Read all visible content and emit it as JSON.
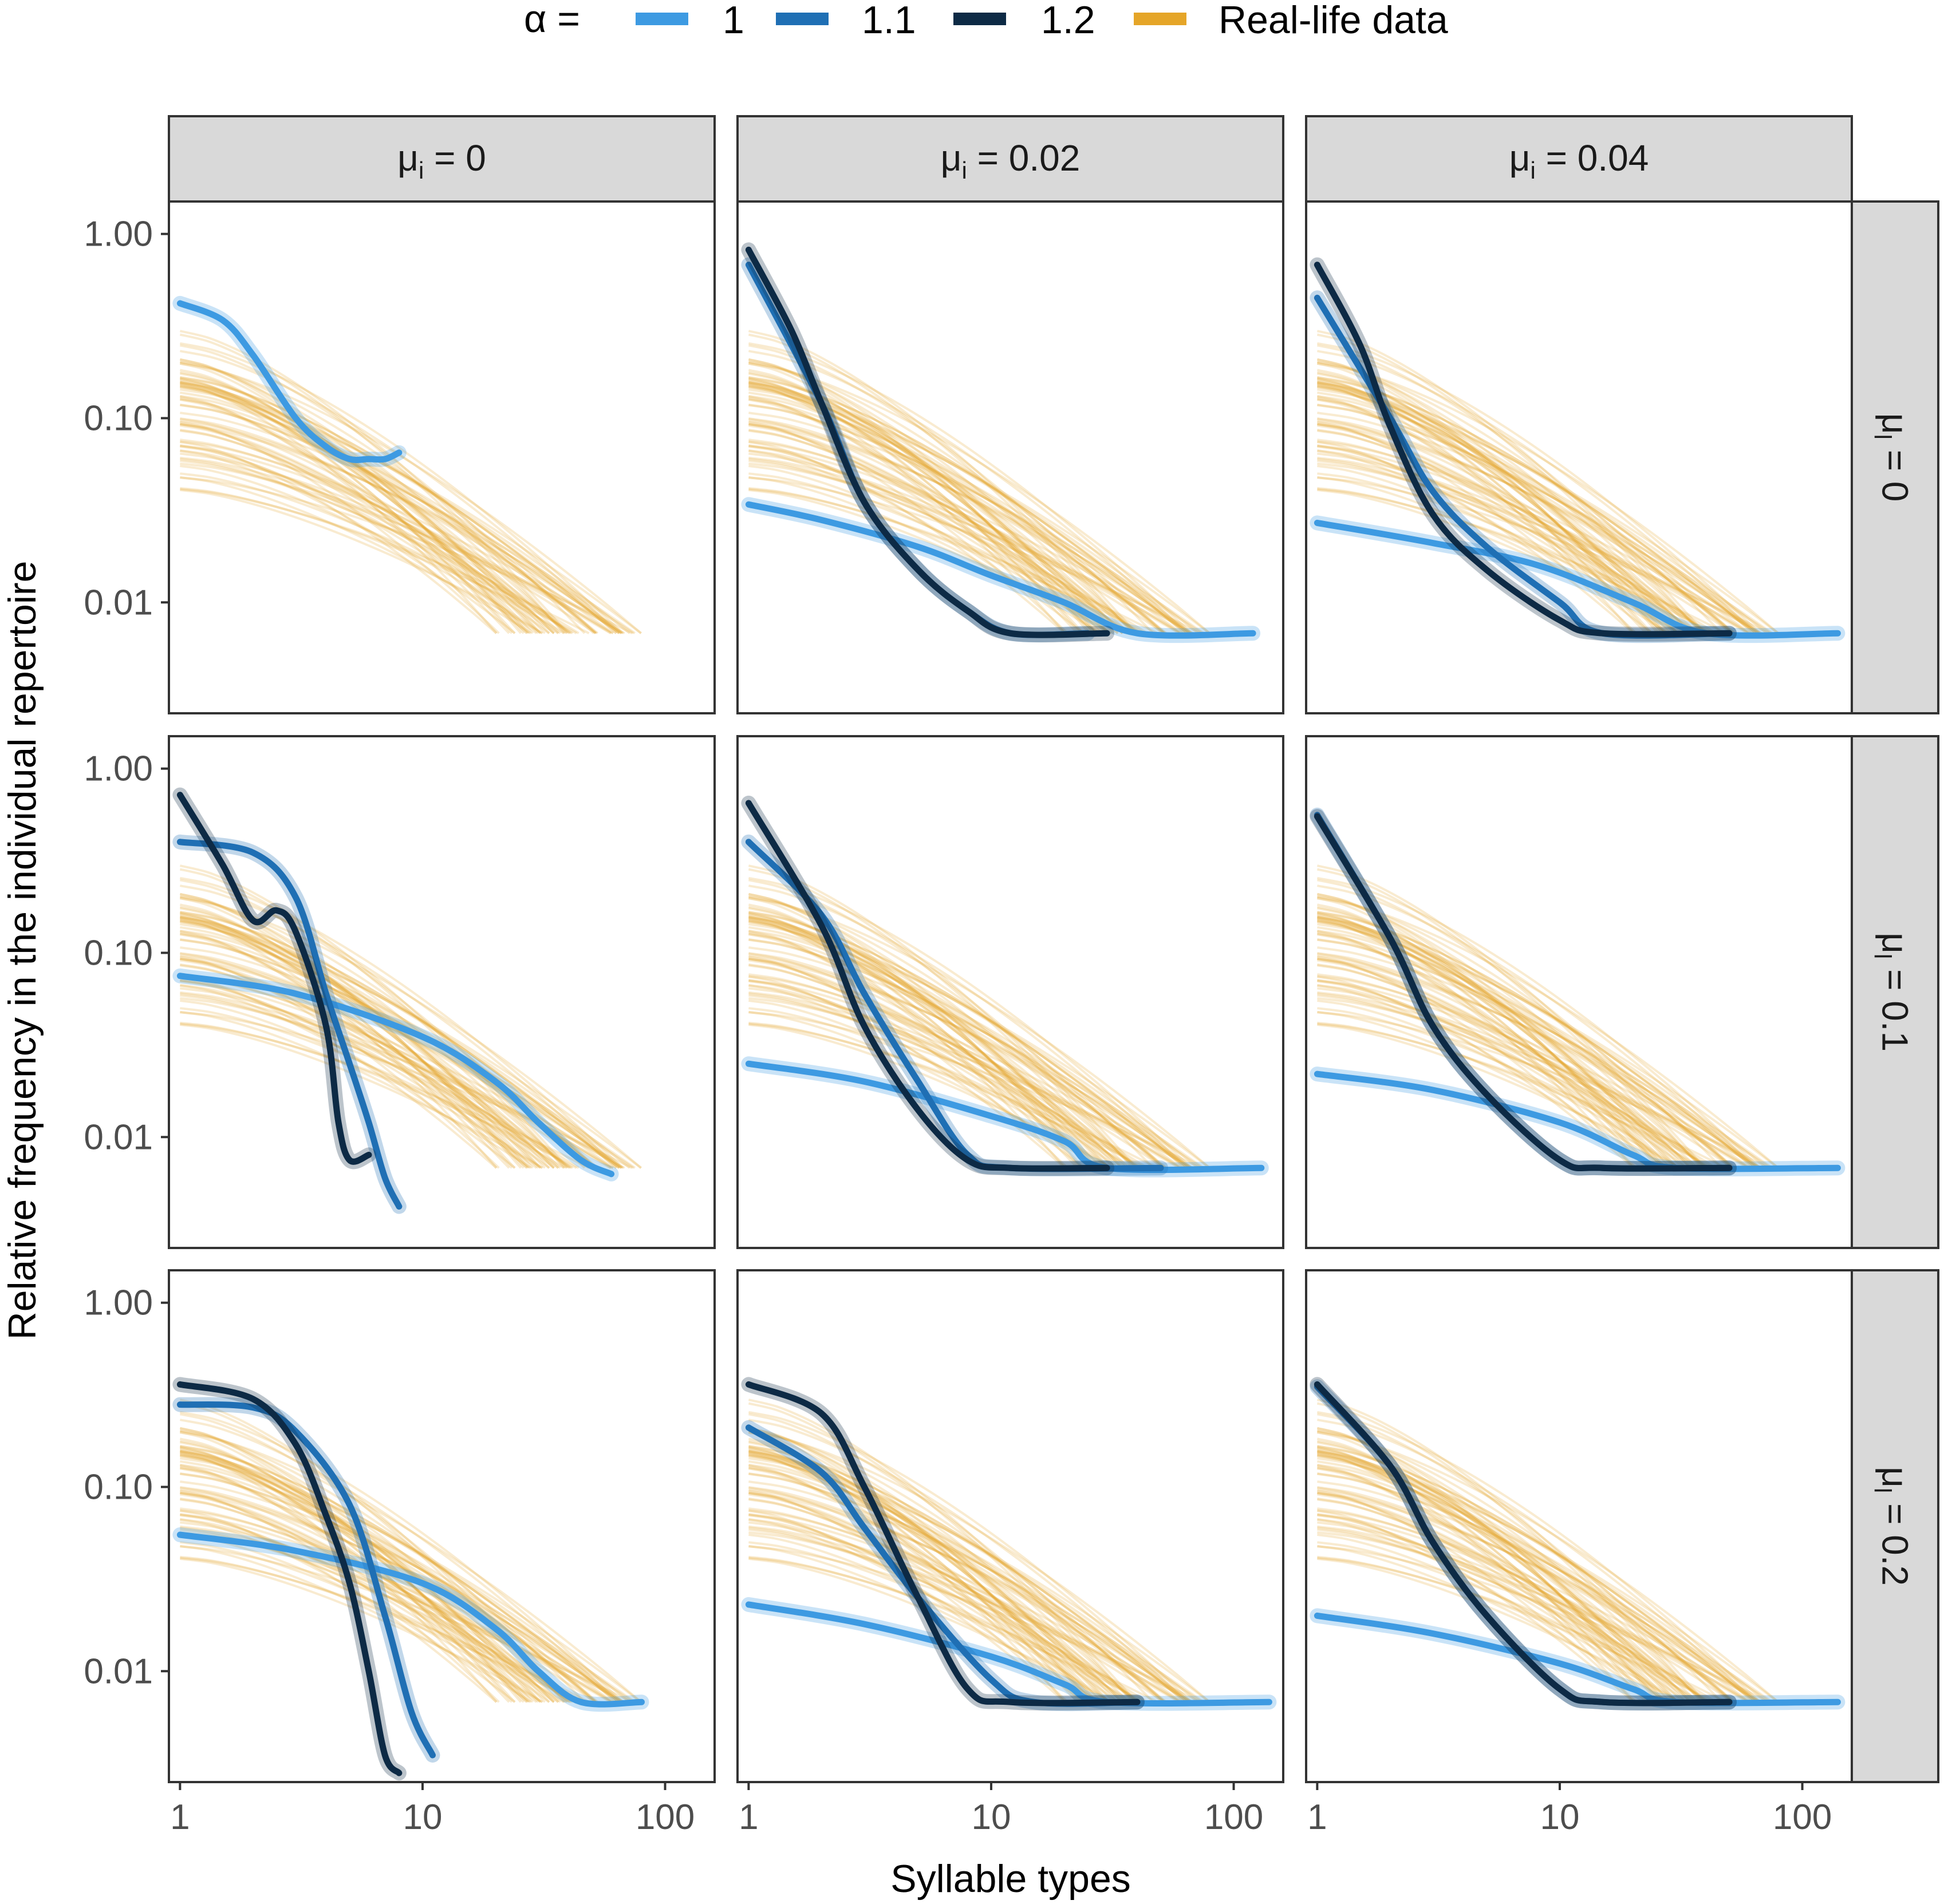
{
  "chart_data": {
    "type": "line",
    "title": "",
    "xlabel": "Syllable types",
    "ylabel": "Relative frequency in the individual repertoire",
    "x_scale": "log",
    "y_scale": "log",
    "xlim": [
      0.9,
      160
    ],
    "ylim": [
      0.0025,
      1.5
    ],
    "x_ticks": [
      1,
      10,
      100
    ],
    "x_tick_labels": [
      "1",
      "10",
      "100"
    ],
    "y_ticks": [
      1,
      0.1,
      0.01
    ],
    "y_tick_labels": [
      "1.00",
      "0.10",
      "0.01"
    ],
    "legend": {
      "title": "α =",
      "position": "top",
      "entries": [
        {
          "label": "1",
          "color": "#3d9ae2"
        },
        {
          "label": "1.1",
          "color": "#1f6fb4"
        },
        {
          "label": "1.2",
          "color": "#0d2a45"
        },
        {
          "label": "Real-life data",
          "color": "#e5a528"
        }
      ]
    },
    "col_facets": [
      {
        "symbol": "μ",
        "sub": "i",
        "value": "0"
      },
      {
        "symbol": "μ",
        "sub": "i",
        "value": "0.02"
      },
      {
        "symbol": "μ",
        "sub": "i",
        "value": "0.04"
      }
    ],
    "row_facets": [
      {
        "symbol": "μ",
        "sub": "l",
        "value": "0"
      },
      {
        "symbol": "μ",
        "sub": "l",
        "value": "0.1"
      },
      {
        "symbol": "μ",
        "sub": "l",
        "value": "0.2"
      }
    ],
    "real_life_data": {
      "description": "bundle of many semi-transparent empirical curves, identical in every panel",
      "start_range_at_x1": [
        0.04,
        0.3
      ],
      "x_end_range": [
        20,
        80
      ],
      "floor": 0.0068
    },
    "panels": [
      {
        "row": 0,
        "col": 0,
        "series": [
          {
            "alpha": "1",
            "points": [
              [
                1,
                0.42
              ],
              [
                1.5,
                0.34
              ],
              [
                2,
                0.22
              ],
              [
                3,
                0.1
              ],
              [
                4,
                0.07
              ],
              [
                5,
                0.06
              ],
              [
                6,
                0.06
              ],
              [
                7,
                0.06
              ],
              [
                8,
                0.065
              ]
            ]
          }
        ]
      },
      {
        "row": 0,
        "col": 1,
        "series": [
          {
            "alpha": "1",
            "points": [
              [
                1,
                0.034
              ],
              [
                2,
                0.028
              ],
              [
                5,
                0.02
              ],
              [
                10,
                0.014
              ],
              [
                20,
                0.01
              ],
              [
                40,
                0.0068
              ],
              [
                120,
                0.0068
              ]
            ]
          },
          {
            "alpha": "1.1",
            "points": [
              [
                1,
                0.68
              ],
              [
                2,
                0.12
              ],
              [
                3,
                0.035
              ],
              [
                5,
                0.015
              ],
              [
                8,
                0.009
              ],
              [
                12,
                0.0068
              ],
              [
                25,
                0.0068
              ]
            ]
          },
          {
            "alpha": "1.2",
            "points": [
              [
                1,
                0.82
              ],
              [
                1.5,
                0.3
              ],
              [
                2,
                0.12
              ],
              [
                3,
                0.035
              ],
              [
                5,
                0.015
              ],
              [
                8,
                0.009
              ],
              [
                12,
                0.0068
              ],
              [
                30,
                0.0068
              ]
            ]
          }
        ]
      },
      {
        "row": 0,
        "col": 2,
        "series": [
          {
            "alpha": "1",
            "points": [
              [
                1,
                0.027
              ],
              [
                3,
                0.021
              ],
              [
                8,
                0.016
              ],
              [
                20,
                0.01
              ],
              [
                40,
                0.0068
              ],
              [
                140,
                0.0068
              ]
            ]
          },
          {
            "alpha": "1.1",
            "points": [
              [
                1,
                0.45
              ],
              [
                2,
                0.1
              ],
              [
                3,
                0.04
              ],
              [
                5,
                0.02
              ],
              [
                10,
                0.01
              ],
              [
                15,
                0.0068
              ],
              [
                50,
                0.0068
              ]
            ]
          },
          {
            "alpha": "1.2",
            "points": [
              [
                1,
                0.68
              ],
              [
                1.5,
                0.25
              ],
              [
                2,
                0.09
              ],
              [
                3,
                0.03
              ],
              [
                5,
                0.015
              ],
              [
                10,
                0.008
              ],
              [
                15,
                0.0068
              ],
              [
                50,
                0.0068
              ]
            ]
          }
        ]
      },
      {
        "row": 1,
        "col": 0,
        "series": [
          {
            "alpha": "1",
            "points": [
              [
                1,
                0.075
              ],
              [
                3,
                0.06
              ],
              [
                10,
                0.035
              ],
              [
                20,
                0.02
              ],
              [
                30,
                0.012
              ],
              [
                45,
                0.0075
              ],
              [
                60,
                0.0063
              ]
            ]
          },
          {
            "alpha": "1.1",
            "points": [
              [
                1,
                0.4
              ],
              [
                2,
                0.35
              ],
              [
                3,
                0.2
              ],
              [
                4,
                0.06
              ],
              [
                5,
                0.025
              ],
              [
                6,
                0.012
              ],
              [
                7,
                0.006
              ],
              [
                8,
                0.0042
              ]
            ]
          },
          {
            "alpha": "1.2",
            "points": [
              [
                1,
                0.72
              ],
              [
                1.5,
                0.3
              ],
              [
                2,
                0.15
              ],
              [
                2.5,
                0.17
              ],
              [
                3,
                0.13
              ],
              [
                4,
                0.04
              ],
              [
                4.5,
                0.012
              ],
              [
                5,
                0.0075
              ],
              [
                6,
                0.008
              ]
            ]
          }
        ]
      },
      {
        "row": 1,
        "col": 1,
        "series": [
          {
            "alpha": "1",
            "points": [
              [
                1,
                0.025
              ],
              [
                3,
                0.02
              ],
              [
                10,
                0.013
              ],
              [
                20,
                0.0095
              ],
              [
                30,
                0.0068
              ],
              [
                130,
                0.0068
              ]
            ]
          },
          {
            "alpha": "1.1",
            "points": [
              [
                1,
                0.4
              ],
              [
                2,
                0.16
              ],
              [
                3,
                0.06
              ],
              [
                5,
                0.02
              ],
              [
                8,
                0.008
              ],
              [
                12,
                0.0068
              ],
              [
                50,
                0.0068
              ]
            ]
          },
          {
            "alpha": "1.2",
            "points": [
              [
                1,
                0.65
              ],
              [
                2,
                0.14
              ],
              [
                3,
                0.04
              ],
              [
                5,
                0.014
              ],
              [
                8,
                0.0075
              ],
              [
                12,
                0.0068
              ],
              [
                30,
                0.0068
              ]
            ]
          }
        ]
      },
      {
        "row": 1,
        "col": 2,
        "series": [
          {
            "alpha": "1",
            "points": [
              [
                1,
                0.022
              ],
              [
                3,
                0.018
              ],
              [
                10,
                0.012
              ],
              [
                20,
                0.008
              ],
              [
                30,
                0.0068
              ],
              [
                140,
                0.0068
              ]
            ]
          },
          {
            "alpha": "1.1",
            "points": [
              [
                1,
                0.56
              ],
              [
                2,
                0.12
              ],
              [
                3,
                0.04
              ],
              [
                5,
                0.017
              ],
              [
                10,
                0.0075
              ],
              [
                15,
                0.0068
              ],
              [
                50,
                0.0068
              ]
            ]
          },
          {
            "alpha": "1.2",
            "points": [
              [
                1,
                0.55
              ],
              [
                2,
                0.12
              ],
              [
                3,
                0.04
              ],
              [
                5,
                0.017
              ],
              [
                10,
                0.0075
              ],
              [
                15,
                0.0068
              ],
              [
                50,
                0.0068
              ]
            ]
          }
        ]
      },
      {
        "row": 2,
        "col": 0,
        "series": [
          {
            "alpha": "1",
            "points": [
              [
                1,
                0.055
              ],
              [
                3,
                0.045
              ],
              [
                10,
                0.03
              ],
              [
                20,
                0.017
              ],
              [
                30,
                0.01
              ],
              [
                45,
                0.0068
              ],
              [
                80,
                0.0068
              ]
            ]
          },
          {
            "alpha": "1.1",
            "points": [
              [
                1,
                0.28
              ],
              [
                2,
                0.27
              ],
              [
                3,
                0.2
              ],
              [
                5,
                0.08
              ],
              [
                7,
                0.02
              ],
              [
                9,
                0.006
              ],
              [
                11,
                0.0035
              ]
            ]
          },
          {
            "alpha": "1.2",
            "points": [
              [
                1,
                0.36
              ],
              [
                2,
                0.3
              ],
              [
                3,
                0.17
              ],
              [
                4,
                0.07
              ],
              [
                5,
                0.03
              ],
              [
                6,
                0.01
              ],
              [
                7,
                0.0035
              ],
              [
                8,
                0.0028
              ]
            ]
          }
        ]
      },
      {
        "row": 2,
        "col": 1,
        "series": [
          {
            "alpha": "1",
            "points": [
              [
                1,
                0.023
              ],
              [
                3,
                0.018
              ],
              [
                10,
                0.012
              ],
              [
                20,
                0.0085
              ],
              [
                30,
                0.0068
              ],
              [
                140,
                0.0068
              ]
            ]
          },
          {
            "alpha": "1.1",
            "points": [
              [
                1,
                0.21
              ],
              [
                2,
                0.12
              ],
              [
                3,
                0.06
              ],
              [
                5,
                0.025
              ],
              [
                10,
                0.009
              ],
              [
                15,
                0.0068
              ],
              [
                40,
                0.0068
              ]
            ]
          },
          {
            "alpha": "1.2",
            "points": [
              [
                1,
                0.36
              ],
              [
                2,
                0.25
              ],
              [
                3,
                0.1
              ],
              [
                5,
                0.025
              ],
              [
                8,
                0.008
              ],
              [
                12,
                0.0068
              ],
              [
                40,
                0.0068
              ]
            ]
          }
        ]
      },
      {
        "row": 2,
        "col": 2,
        "series": [
          {
            "alpha": "1",
            "points": [
              [
                1,
                0.02
              ],
              [
                3,
                0.016
              ],
              [
                10,
                0.011
              ],
              [
                20,
                0.008
              ],
              [
                30,
                0.0068
              ],
              [
                140,
                0.0068
              ]
            ]
          },
          {
            "alpha": "1.1",
            "points": [
              [
                1,
                0.35
              ],
              [
                2,
                0.13
              ],
              [
                3,
                0.05
              ],
              [
                5,
                0.02
              ],
              [
                10,
                0.008
              ],
              [
                15,
                0.0068
              ],
              [
                50,
                0.0068
              ]
            ]
          },
          {
            "alpha": "1.2",
            "points": [
              [
                1,
                0.36
              ],
              [
                2,
                0.13
              ],
              [
                3,
                0.05
              ],
              [
                5,
                0.02
              ],
              [
                10,
                0.008
              ],
              [
                15,
                0.0068
              ],
              [
                50,
                0.0068
              ]
            ]
          }
        ]
      }
    ]
  }
}
